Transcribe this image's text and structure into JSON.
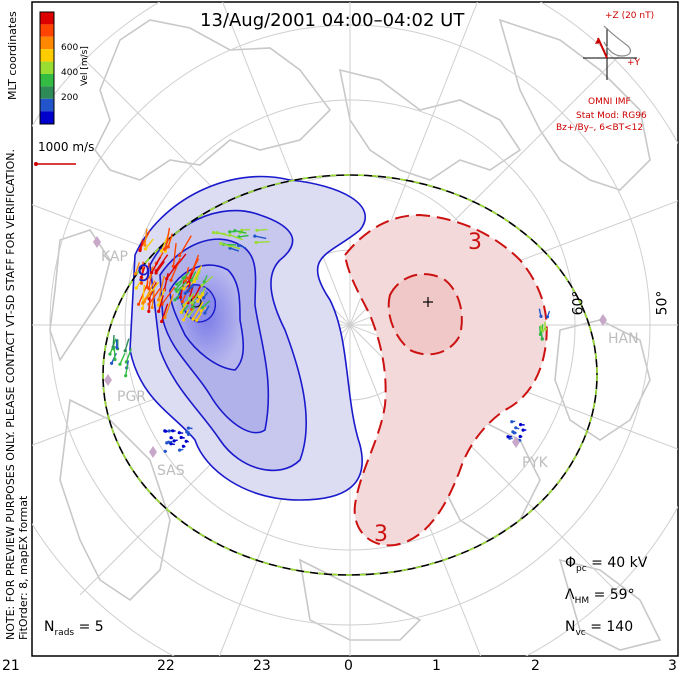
{
  "title": "13/Aug/2001 04:00–04:02 UT",
  "side_note": {
    "line1": "NOTE: FOR PREVIEW PURPOSES ONLY. PLEASE CONTACT VT-SD STAFF FOR VERIFICATION.",
    "line2": "FitOrder: 8, mapEX format",
    "coords": "MLT coordinates"
  },
  "velocity_scale": {
    "label": "Vel [m/s]",
    "ticks": [
      "600",
      "400",
      "200"
    ],
    "colors": [
      "#dd0000",
      "#ff4400",
      "#ff8800",
      "#ffcc00",
      "#99dd33",
      "#33bb44",
      "#2e8b57",
      "#2255cc",
      "#0000cc"
    ]
  },
  "reference_vector": {
    "label": "1000 m/s",
    "color": "#cc0000"
  },
  "imf": {
    "z_label": "+Z (20 nT)",
    "y_label": "+Y",
    "source": "OMNI IMF",
    "model": "Stat Mod: RG96",
    "condition": "Bz+/By–, 6<BT<12",
    "color": "#cc0000"
  },
  "stations": [
    {
      "name": "KAP"
    },
    {
      "name": "PGR"
    },
    {
      "name": "SAS"
    },
    {
      "name": "PYK"
    },
    {
      "name": "HAN"
    }
  ],
  "lat_labels": [
    "60°",
    "50°"
  ],
  "contour_labels": {
    "neg": "9",
    "pos_top": "3",
    "pos_bottom": "3"
  },
  "stats": {
    "phi_pc": {
      "symbol": "Φ",
      "sub": "pc",
      "value": "= 40 kV"
    },
    "lambda_hm": {
      "symbol": "Λ",
      "sub": "HM",
      "value": "= 59°"
    },
    "n_vc": {
      "symbol": "N",
      "sub": "vc",
      "value": "= 140"
    },
    "n_rads": {
      "symbol": "N",
      "sub": "rads",
      "value": "= 5"
    }
  },
  "mlt_ticks": [
    "21",
    "22",
    "23",
    "0",
    "1",
    "2",
    "3"
  ],
  "colors": {
    "negative_cell": "#1a1acc",
    "positive_cell": "#cc1111",
    "coastline": "#c8c8c8",
    "hmb_dash": "#99dd33"
  }
}
